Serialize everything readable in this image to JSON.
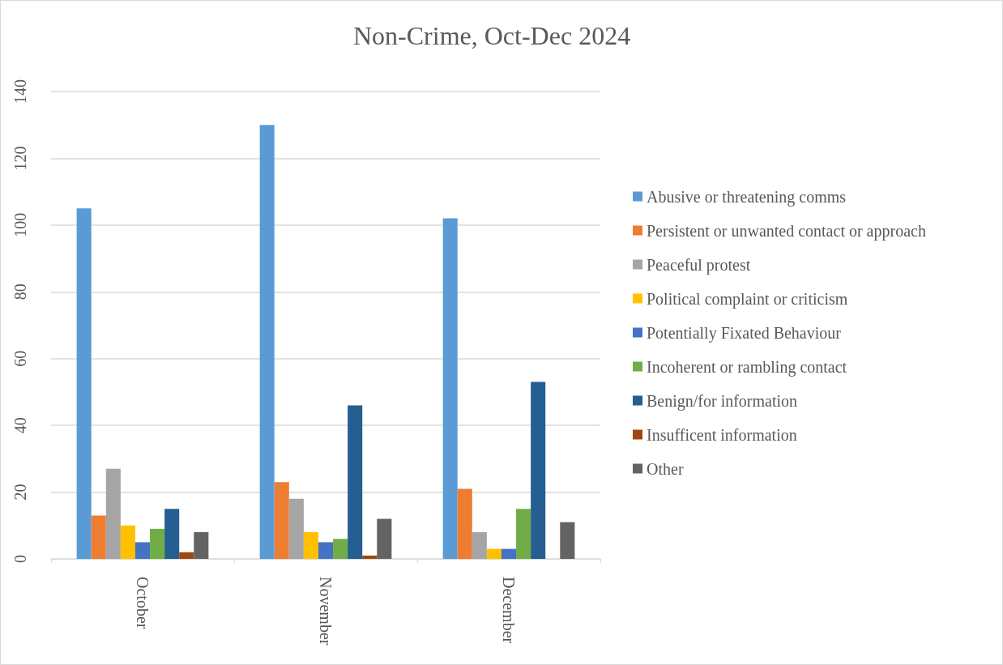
{
  "chart_data": {
    "type": "bar",
    "title": "Non-Crime, Oct-Dec 2024",
    "categories": [
      "October",
      "November",
      "December"
    ],
    "series": [
      {
        "name": "Abusive or threatening comms",
        "color": "#5b9bd5",
        "values": [
          105,
          130,
          102
        ]
      },
      {
        "name": "Persistent or unwanted contact or approach",
        "color": "#ed7d31",
        "values": [
          13,
          23,
          21
        ]
      },
      {
        "name": "Peaceful protest",
        "color": "#a5a5a5",
        "values": [
          27,
          18,
          8
        ]
      },
      {
        "name": "Political complaint or criticism",
        "color": "#ffc000",
        "values": [
          10,
          8,
          3
        ]
      },
      {
        "name": "Potentially Fixated Behaviour",
        "color": "#4472c4",
        "values": [
          5,
          5,
          3
        ]
      },
      {
        "name": "Incoherent or rambling contact",
        "color": "#70ad47",
        "values": [
          9,
          6,
          15
        ]
      },
      {
        "name": "Benign/for information",
        "color": "#255e91",
        "values": [
          15,
          46,
          53
        ]
      },
      {
        "name": "Insufficent information",
        "color": "#9e480e",
        "values": [
          2,
          1,
          0
        ]
      },
      {
        "name": "Other",
        "color": "#636363",
        "values": [
          8,
          12,
          11
        ]
      }
    ],
    "ylim": [
      0,
      140
    ],
    "yticks": [
      0,
      20,
      40,
      60,
      80,
      100,
      120,
      140
    ],
    "grid": "y",
    "legend": "right"
  }
}
